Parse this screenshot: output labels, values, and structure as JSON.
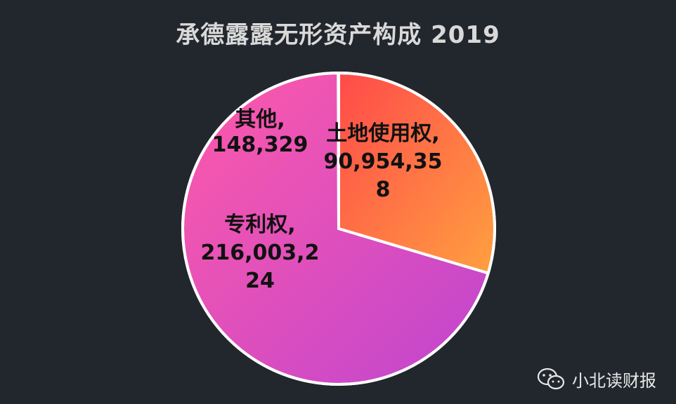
{
  "title": "承德露露无形资产构成 2019",
  "watermark": "小北读财报",
  "chart_data": {
    "type": "pie",
    "title": "承德露露无形资产构成 2019",
    "slices": [
      {
        "name": "土地使用权",
        "value": 90954358,
        "label_lines": [
          "土地使用权,",
          "90,954,35",
          "8"
        ]
      },
      {
        "name": "专利权",
        "value": 216003224,
        "label_lines": [
          "专利权,",
          "216,003,2",
          "24"
        ]
      },
      {
        "name": "其他",
        "value": 148329,
        "label_lines": [
          "其他,",
          "148,329"
        ]
      }
    ],
    "start_angle": "12 o'clock",
    "direction": "clockwise",
    "legend": "none",
    "colors": {
      "land_use_rights": [
        "#ff4f4f",
        "#ff9f40"
      ],
      "patents": [
        "#ff66b0",
        "#c44fd4"
      ],
      "other": "#e85bb2",
      "border": "#ffffff",
      "background": "#22262d"
    }
  }
}
